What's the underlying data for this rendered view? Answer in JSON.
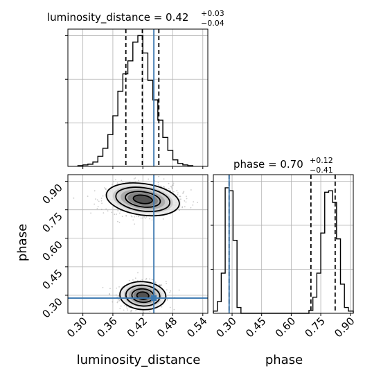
{
  "chart_data": {
    "type": "corner",
    "parameters": [
      "luminosity_distance",
      "phase"
    ],
    "truths": {
      "luminosity_distance": 0.442,
      "phase": 0.285
    },
    "colors": {
      "truth": "#3b78b0",
      "hist": "#000000",
      "grid": "#b0b0b0",
      "point": "#9a9a9a"
    },
    "panels": {
      "luminosity_distance_hist": {
        "title": "luminosity_distance = 0.42",
        "title_sup": "+0.03",
        "title_sub": "−0.04",
        "xlim": [
          0.27,
          0.55
        ],
        "quantiles": [
          0.386,
          0.419,
          0.452
        ],
        "bins_edges": [
          0.29,
          0.3,
          0.31,
          0.32,
          0.33,
          0.34,
          0.35,
          0.36,
          0.37,
          0.38,
          0.39,
          0.4,
          0.41,
          0.42,
          0.43,
          0.44,
          0.45,
          0.46,
          0.47,
          0.48,
          0.49,
          0.5,
          0.51,
          0.52
        ],
        "bins_counts": [
          1,
          2,
          3,
          6,
          14,
          25,
          44,
          70,
          104,
          128,
          146,
          172,
          181,
          157,
          119,
          92,
          64,
          40,
          22,
          9,
          4,
          2,
          1
        ],
        "ymax": 190
      },
      "phase_hist": {
        "title": "phase = 0.70",
        "title_sup": "+0.12",
        "title_sub": "−0.41",
        "xlim": [
          0.205,
          0.915
        ],
        "quantiles": [
          0.285,
          0.7,
          0.823
        ],
        "bins_edges": [
          0.205,
          0.225,
          0.245,
          0.265,
          0.285,
          0.305,
          0.325,
          0.345,
          0.69,
          0.71,
          0.73,
          0.75,
          0.77,
          0.79,
          0.81,
          0.83,
          0.85,
          0.87,
          0.89,
          0.915
        ],
        "bins_counts": [
          3,
          16,
          55,
          172,
          168,
          100,
          8,
          0,
          4,
          22,
          55,
          110,
          166,
          168,
          152,
          102,
          40,
          8,
          3
        ],
        "ymax": 190
      },
      "joint": {
        "xlim": [
          0.27,
          0.55
        ],
        "ylim": [
          0.205,
          0.935
        ],
        "clusters": [
          {
            "cx": 0.42,
            "cy": 0.298,
            "sx": 0.02,
            "sy": 0.032
          },
          {
            "cx": 0.42,
            "cy": 0.805,
            "sx": 0.032,
            "sy": 0.036
          }
        ]
      }
    },
    "x_ticks_left": [
      "0.30",
      "0.36",
      "0.42",
      "0.48",
      "0.54"
    ],
    "x_ticks_left_values": [
      0.3,
      0.36,
      0.42,
      0.48,
      0.54
    ],
    "y_ticks_left": [
      "0.30",
      "0.45",
      "0.60",
      "0.75",
      "0.90"
    ],
    "y_ticks_left_values": [
      0.3,
      0.45,
      0.6,
      0.75,
      0.9
    ],
    "x_ticks_right": [
      "0.30",
      "0.45",
      "0.60",
      "0.75",
      "0.90"
    ],
    "x_ticks_right_values": [
      0.3,
      0.45,
      0.6,
      0.75,
      0.9
    ],
    "xlabel_left": "luminosity_distance",
    "ylabel_left": "phase",
    "xlabel_right": "phase"
  }
}
